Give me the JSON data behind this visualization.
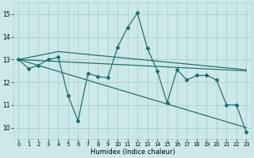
{
  "bg_color": "#cce8e8",
  "grid_color": "#aacfcf",
  "line_color": "#1a6b6b",
  "xlabel": "Humidex (Indice chaleur)",
  "xlim": [
    -0.5,
    23.5
  ],
  "ylim": [
    9.5,
    15.5
  ],
  "yticks": [
    10,
    11,
    12,
    13,
    14,
    15
  ],
  "xticks": [
    0,
    1,
    2,
    3,
    4,
    5,
    6,
    7,
    8,
    9,
    10,
    11,
    12,
    13,
    14,
    15,
    16,
    17,
    18,
    19,
    20,
    21,
    22,
    23
  ],
  "series1": [
    13.0,
    12.6,
    12.75,
    13.0,
    13.1,
    11.4,
    10.3,
    12.4,
    12.25,
    12.2,
    13.55,
    14.4,
    15.05,
    13.5,
    12.5,
    11.1,
    12.55,
    12.1,
    12.3,
    12.3,
    12.1,
    11.0,
    11.0,
    9.8
  ],
  "series2_x": [
    0,
    23
  ],
  "series2_y": [
    13.0,
    12.5
  ],
  "series3_x": [
    0,
    4,
    23
  ],
  "series3_y": [
    13.0,
    13.35,
    12.55
  ],
  "series4_x": [
    0,
    23
  ],
  "series4_y": [
    13.0,
    10.0
  ]
}
